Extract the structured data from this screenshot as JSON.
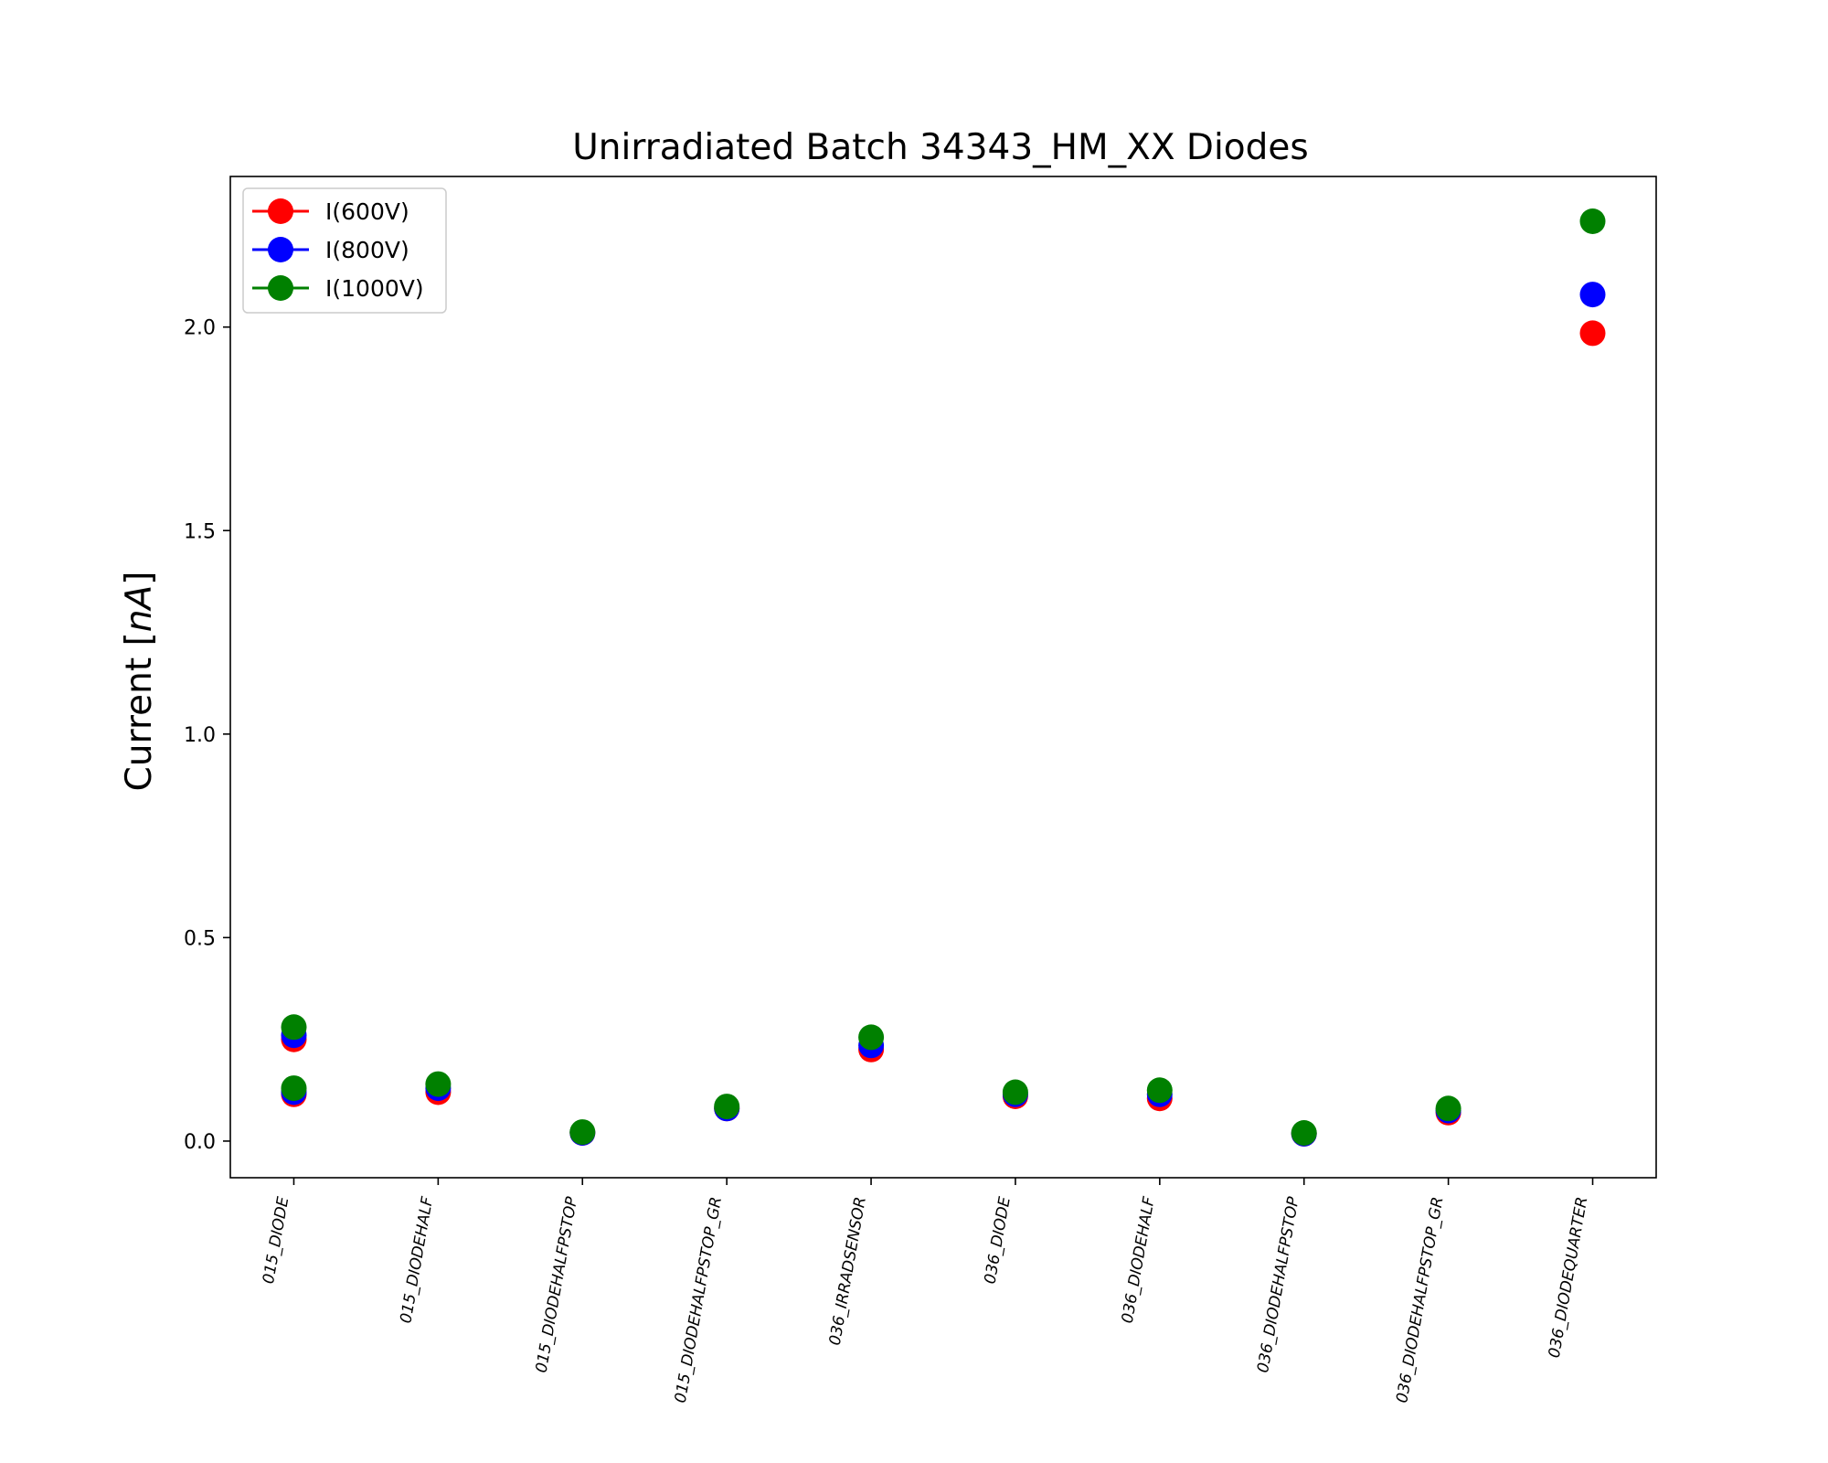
{
  "chart_data": {
    "type": "scatter",
    "title": "Unirradiated Batch 34343_HM_XX Diodes",
    "xlabel": "",
    "ylabel": "Current [nA]",
    "ylim": [
      -0.09,
      2.37
    ],
    "yticks": [
      "0.0",
      "0.5",
      "1.0",
      "1.5",
      "2.0"
    ],
    "ytick_values": [
      0.0,
      0.5,
      1.0,
      1.5,
      2.0
    ],
    "categories": [
      "015_DIODE",
      "015_DIODEHALF",
      "015_DIODEHALFPSTOP",
      "015_DIODEHALFPSTOP_GR",
      "036_IRRADSENSOR",
      "036_DIODE",
      "036_DIODEHALF",
      "036_DIODEHALFPSTOP",
      "036_DIODEHALFPSTOP_GR",
      "036_DIODEQUARTER"
    ],
    "grid": false,
    "legend_position": "top-left",
    "series": [
      {
        "name": "I(600V)",
        "color": "#ff0000",
        "points": [
          [
            0,
            0.25
          ],
          [
            0,
            0.115
          ],
          [
            1,
            0.12
          ],
          [
            2,
            0.02
          ],
          [
            3,
            0.08
          ],
          [
            4,
            0.225
          ],
          [
            5,
            0.11
          ],
          [
            6,
            0.105
          ],
          [
            7,
            0.018
          ],
          [
            8,
            0.07
          ],
          [
            9,
            1.985
          ]
        ]
      },
      {
        "name": "I(800V)",
        "color": "#0000ff",
        "points": [
          [
            0,
            0.26
          ],
          [
            0,
            0.12
          ],
          [
            1,
            0.13
          ],
          [
            2,
            0.02
          ],
          [
            3,
            0.08
          ],
          [
            4,
            0.235
          ],
          [
            5,
            0.115
          ],
          [
            6,
            0.115
          ],
          [
            7,
            0.018
          ],
          [
            8,
            0.075
          ],
          [
            9,
            2.08
          ]
        ]
      },
      {
        "name": "I(1000V)",
        "color": "#008000",
        "points": [
          [
            0,
            0.28
          ],
          [
            0,
            0.13
          ],
          [
            1,
            0.14
          ],
          [
            2,
            0.022
          ],
          [
            3,
            0.085
          ],
          [
            4,
            0.255
          ],
          [
            5,
            0.12
          ],
          [
            6,
            0.125
          ],
          [
            7,
            0.02
          ],
          [
            8,
            0.08
          ],
          [
            9,
            2.26
          ]
        ]
      }
    ]
  }
}
